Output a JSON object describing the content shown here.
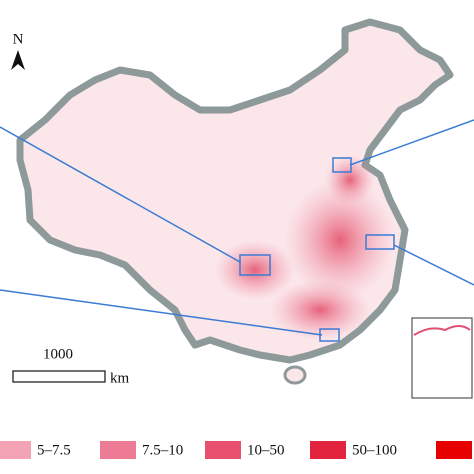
{
  "north_label": "N",
  "scale_bar": {
    "distance": "1000",
    "unit": "km"
  },
  "legend": {
    "items": [
      {
        "color": "#f4a3b5",
        "label": "5–7.5"
      },
      {
        "color": "#ee7b95",
        "label": "7.5–10"
      },
      {
        "color": "#e8506e",
        "label": "10–50"
      },
      {
        "color": "#e2243f",
        "label": "50–100"
      },
      {
        "color": "#e60000"
      }
    ]
  }
}
